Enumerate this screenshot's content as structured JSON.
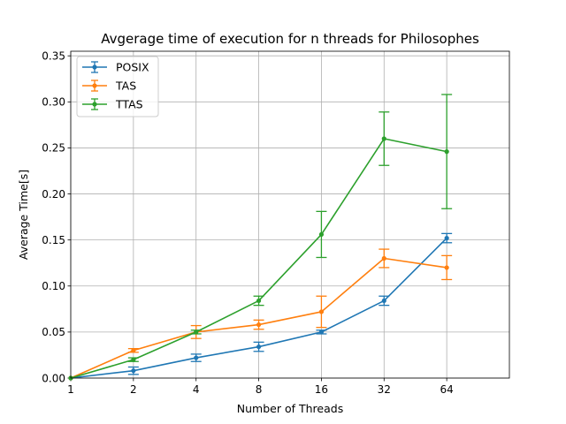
{
  "chart_data": {
    "type": "line",
    "title": "Avgerage time of execution for n threads for Philosophes",
    "xlabel": "Number of Threads",
    "ylabel": "Average Time[s]",
    "x_scale": "log2",
    "xlim": [
      1,
      128
    ],
    "ylim": [
      0,
      0.355
    ],
    "x_ticks": [
      1,
      2,
      4,
      8,
      16,
      32,
      64
    ],
    "x_tick_labels": [
      "1",
      "2",
      "4",
      "8",
      "16",
      "32",
      "64"
    ],
    "y_ticks": [
      0,
      0.05,
      0.1,
      0.15,
      0.2,
      0.25,
      0.3,
      0.35
    ],
    "y_tick_labels": [
      "0.00",
      "0.05",
      "0.10",
      "0.15",
      "0.20",
      "0.25",
      "0.30",
      "0.35"
    ],
    "grid": true,
    "legend_position": "top-left",
    "series": [
      {
        "name": "POSIX",
        "color": "#1f77b4",
        "x": [
          1,
          2,
          4,
          8,
          16,
          32,
          64
        ],
        "y": [
          0.0,
          0.008,
          0.022,
          0.034,
          0.05,
          0.084,
          0.152
        ],
        "yerr": [
          0.0,
          0.004,
          0.004,
          0.005,
          0.002,
          0.005,
          0.005
        ]
      },
      {
        "name": "TAS",
        "color": "#ff7f0e",
        "x": [
          1,
          2,
          4,
          8,
          16,
          32,
          64
        ],
        "y": [
          0.0,
          0.03,
          0.05,
          0.058,
          0.072,
          0.13,
          0.12
        ],
        "yerr": [
          0.0,
          0.002,
          0.007,
          0.005,
          0.017,
          0.01,
          0.013
        ]
      },
      {
        "name": "TTAS",
        "color": "#2ca02c",
        "x": [
          1,
          2,
          4,
          8,
          16,
          32,
          64
        ],
        "y": [
          0.0,
          0.02,
          0.05,
          0.084,
          0.156,
          0.26,
          0.246
        ],
        "yerr": [
          0.0,
          0.002,
          0.002,
          0.005,
          0.025,
          0.029,
          0.062
        ]
      }
    ]
  }
}
